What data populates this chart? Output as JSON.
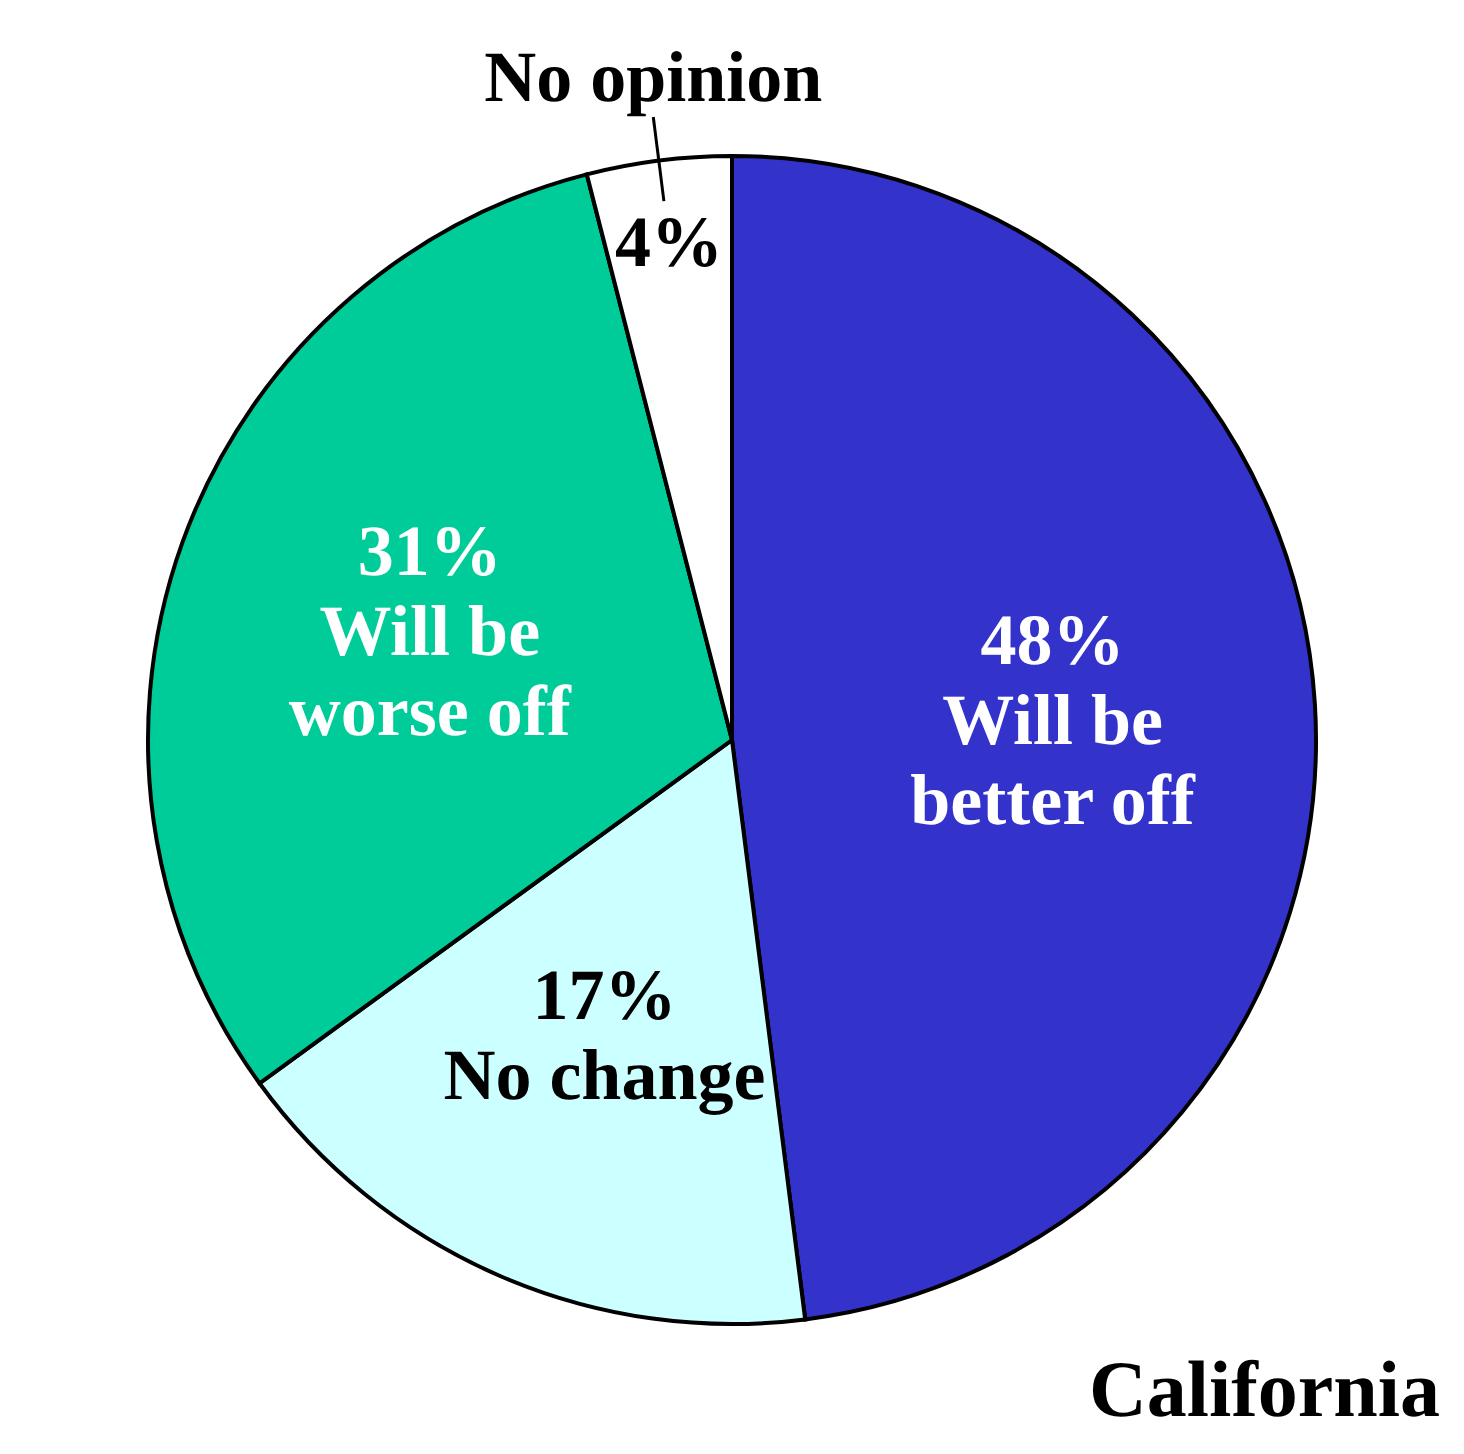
{
  "chart_data": {
    "type": "pie",
    "categories": [
      "Will be better off",
      "No change",
      "Will be worse off",
      "No opinion"
    ],
    "values": [
      48,
      17,
      31,
      4
    ],
    "value_labels": [
      "48%",
      "17%",
      "31%",
      "4%"
    ],
    "colors": [
      "#3333cc",
      "#ccffff",
      "#00cc99",
      "#ffffff"
    ],
    "annotations": [
      "California"
    ]
  }
}
